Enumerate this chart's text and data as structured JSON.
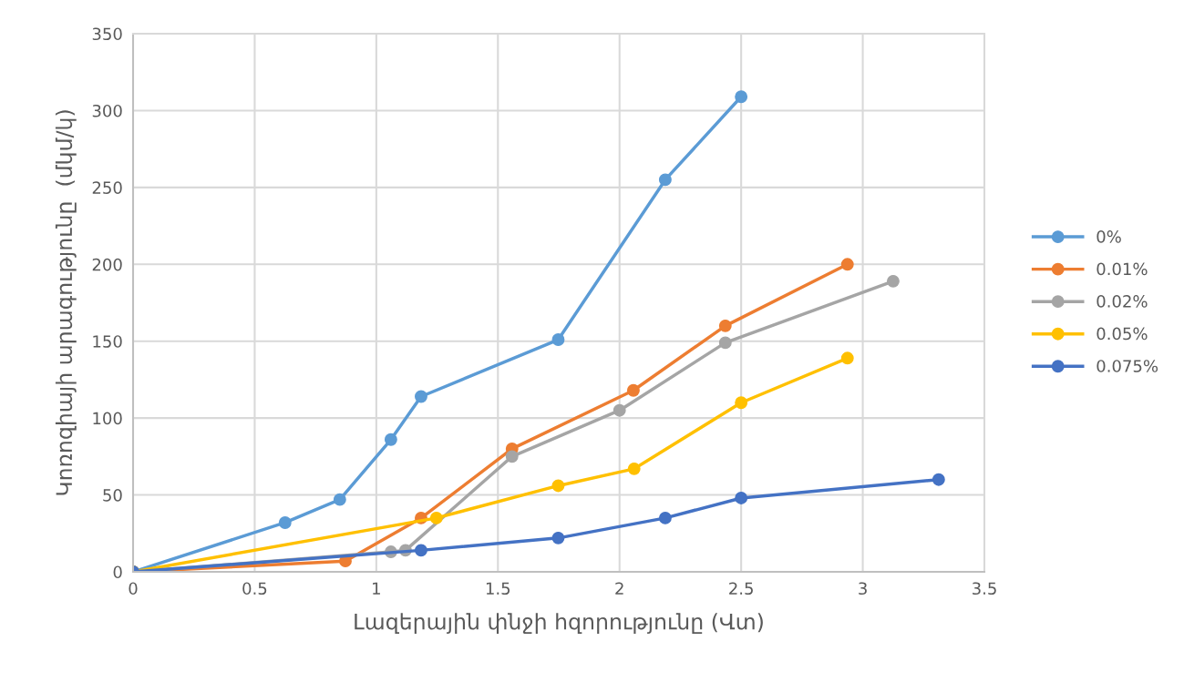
{
  "chart_data": {
    "type": "line",
    "xlabel": "Լազերային փնջի հզորությունը (Վտ)",
    "ylabel": "Կոռոզիայի արագությունը  (մկմ/կ)",
    "xlim": [
      0,
      3.5
    ],
    "xticks": [
      0,
      0.5,
      1,
      1.5,
      2,
      2.5,
      3,
      3.5
    ],
    "ylim": [
      0,
      350
    ],
    "yticks": [
      0,
      50,
      100,
      150,
      200,
      250,
      300,
      350
    ],
    "grid": true,
    "legend": "right",
    "marker": "circle",
    "line_style": "solid",
    "series": [
      {
        "name": "0%",
        "color": "#5b9bd5",
        "x": [
          0,
          0.625,
          0.85,
          1.06,
          1.184,
          1.748,
          2.188,
          2.5
        ],
        "values": [
          0,
          32,
          47,
          86,
          114,
          151,
          255,
          309
        ]
      },
      {
        "name": "0.01%",
        "color": "#ed7d31",
        "x": [
          0,
          0.873,
          1.184,
          1.558,
          2.057,
          2.435,
          2.937
        ],
        "values": [
          0,
          7,
          35,
          80,
          118,
          160,
          200
        ]
      },
      {
        "name": "0.02%",
        "color": "#a5a5a5",
        "x": [
          0,
          1.06,
          1.12,
          1.558,
          2.0,
          2.435,
          3.125
        ],
        "values": [
          0,
          13,
          14,
          75,
          105,
          149,
          189
        ]
      },
      {
        "name": "0.05%",
        "color": "#ffc000",
        "x": [
          0,
          1.247,
          1.748,
          2.06,
          2.5,
          2.937
        ],
        "values": [
          0,
          35,
          56,
          67,
          110,
          139
        ]
      },
      {
        "name": "0.075%",
        "color": "#4472c4",
        "x": [
          0,
          1.184,
          1.748,
          2.188,
          2.5,
          3.312
        ],
        "values": [
          0,
          14,
          22,
          35,
          48,
          60
        ]
      }
    ]
  }
}
